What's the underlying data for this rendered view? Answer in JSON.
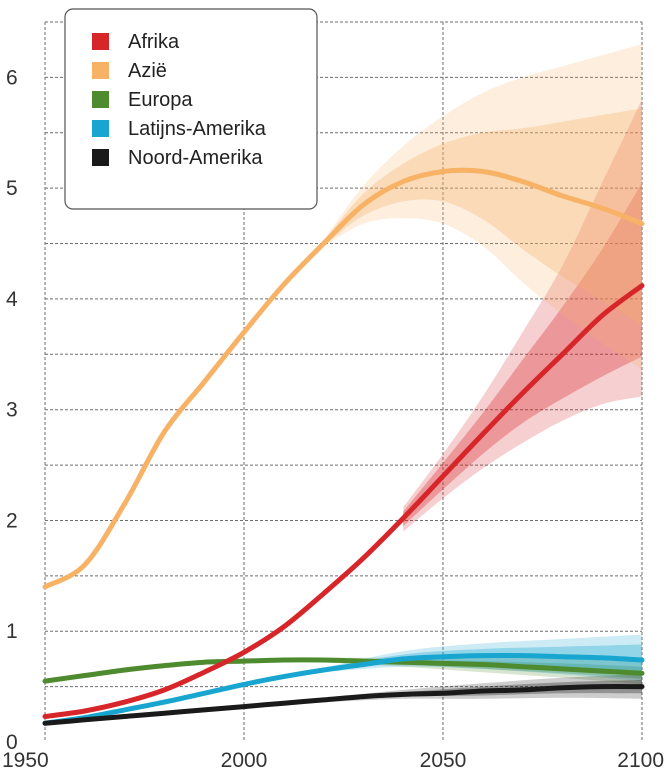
{
  "chart_data": {
    "type": "line",
    "title": "",
    "xlabel": "",
    "ylabel": "",
    "xlim": [
      1950,
      2100
    ],
    "ylim": [
      0,
      6.5
    ],
    "x_ticks": [
      "1950",
      "2000",
      "2050",
      "2100"
    ],
    "y_ticks": [
      "0",
      "1",
      "2",
      "3",
      "4",
      "5",
      "6"
    ],
    "grid": "dashed, x and y, every 0.5 on y",
    "legend_position": "top-left",
    "series": [
      {
        "name": "Afrika",
        "color": "#d7262a",
        "x": [
          1950,
          1960,
          1970,
          1980,
          1990,
          2000,
          2010,
          2020,
          2030,
          2040,
          2050,
          2060,
          2070,
          2080,
          2090,
          2100
        ],
        "values": [
          0.23,
          0.28,
          0.36,
          0.47,
          0.63,
          0.81,
          1.04,
          1.34,
          1.66,
          2.02,
          2.4,
          2.78,
          3.15,
          3.5,
          3.85,
          4.12
        ],
        "band_inner": {
          "x": [
            2040,
            2050,
            2060,
            2070,
            2080,
            2090,
            2100
          ],
          "lower": [
            1.95,
            2.28,
            2.6,
            2.88,
            3.1,
            3.3,
            3.48
          ],
          "upper": [
            2.08,
            2.52,
            2.97,
            3.45,
            3.93,
            4.45,
            5.05
          ]
        },
        "band_outer": {
          "x": [
            2040,
            2050,
            2060,
            2070,
            2080,
            2090,
            2100
          ],
          "lower": [
            1.9,
            2.2,
            2.47,
            2.7,
            2.9,
            3.05,
            3.12
          ],
          "upper": [
            2.12,
            2.6,
            3.12,
            3.7,
            4.3,
            5.05,
            5.8
          ]
        }
      },
      {
        "name": "Azië",
        "color": "#f7b266",
        "x": [
          1950,
          1960,
          1970,
          1980,
          1990,
          2000,
          2010,
          2020,
          2030,
          2040,
          2050,
          2060,
          2070,
          2080,
          2090,
          2100
        ],
        "values": [
          1.4,
          1.6,
          2.15,
          2.8,
          3.25,
          3.7,
          4.13,
          4.5,
          4.85,
          5.06,
          5.15,
          5.15,
          5.06,
          4.93,
          4.82,
          4.68
        ],
        "band_inner": {
          "x": [
            2020,
            2030,
            2040,
            2050,
            2060,
            2070,
            2080,
            2090,
            2100
          ],
          "lower": [
            4.48,
            4.75,
            4.88,
            4.88,
            4.72,
            4.45,
            4.2,
            3.98,
            3.76
          ],
          "upper": [
            4.52,
            4.95,
            5.22,
            5.4,
            5.5,
            5.54,
            5.6,
            5.66,
            5.72
          ]
        },
        "band_outer": {
          "x": [
            2020,
            2030,
            2040,
            2050,
            2060,
            2070,
            2080,
            2090,
            2100
          ],
          "lower": [
            4.47,
            4.68,
            4.73,
            4.68,
            4.48,
            4.15,
            3.86,
            3.6,
            3.36
          ],
          "upper": [
            4.53,
            5.02,
            5.38,
            5.65,
            5.86,
            6.0,
            6.1,
            6.2,
            6.3
          ]
        }
      },
      {
        "name": "Europa",
        "color": "#4e8a2e",
        "x": [
          1950,
          1960,
          1970,
          1980,
          1990,
          2000,
          2010,
          2020,
          2030,
          2040,
          2050,
          2060,
          2070,
          2080,
          2090,
          2100
        ],
        "values": [
          0.55,
          0.6,
          0.65,
          0.69,
          0.72,
          0.73,
          0.74,
          0.74,
          0.73,
          0.72,
          0.71,
          0.7,
          0.68,
          0.66,
          0.64,
          0.62
        ],
        "band_inner": {
          "x": [
            2020,
            2040,
            2060,
            2080,
            2100
          ],
          "lower": [
            0.73,
            0.7,
            0.66,
            0.62,
            0.57
          ],
          "upper": [
            0.75,
            0.74,
            0.73,
            0.71,
            0.68
          ]
        },
        "band_outer": {
          "x": [
            2020,
            2040,
            2060,
            2080,
            2100
          ],
          "lower": [
            0.72,
            0.68,
            0.63,
            0.58,
            0.52
          ],
          "upper": [
            0.76,
            0.76,
            0.76,
            0.75,
            0.73
          ]
        }
      },
      {
        "name": "Latijns-Amerika",
        "color": "#18a5cf",
        "x": [
          1950,
          1960,
          1970,
          1980,
          1990,
          2000,
          2010,
          2020,
          2030,
          2040,
          2050,
          2060,
          2070,
          2080,
          2090,
          2100
        ],
        "values": [
          0.17,
          0.22,
          0.29,
          0.36,
          0.44,
          0.52,
          0.59,
          0.65,
          0.7,
          0.75,
          0.77,
          0.78,
          0.78,
          0.77,
          0.76,
          0.74
        ],
        "band_inner": {
          "x": [
            2020,
            2040,
            2060,
            2080,
            2100
          ],
          "lower": [
            0.64,
            0.71,
            0.7,
            0.66,
            0.62
          ],
          "upper": [
            0.66,
            0.79,
            0.84,
            0.86,
            0.88
          ]
        },
        "band_outer": {
          "x": [
            2020,
            2040,
            2060,
            2080,
            2100
          ],
          "lower": [
            0.63,
            0.68,
            0.66,
            0.61,
            0.55
          ],
          "upper": [
            0.67,
            0.82,
            0.89,
            0.93,
            0.97
          ]
        }
      },
      {
        "name": "Noord-Amerika",
        "color": "#1a1a1a",
        "x": [
          1950,
          1960,
          1970,
          1980,
          1990,
          2000,
          2010,
          2020,
          2030,
          2040,
          2050,
          2060,
          2070,
          2080,
          2090,
          2100
        ],
        "values": [
          0.17,
          0.2,
          0.23,
          0.26,
          0.29,
          0.32,
          0.35,
          0.38,
          0.41,
          0.43,
          0.44,
          0.46,
          0.47,
          0.49,
          0.5,
          0.5
        ],
        "band_inner": {
          "x": [
            2020,
            2040,
            2060,
            2080,
            2100
          ],
          "lower": [
            0.37,
            0.41,
            0.42,
            0.44,
            0.44
          ],
          "upper": [
            0.39,
            0.45,
            0.5,
            0.54,
            0.56
          ]
        },
        "band_outer": {
          "x": [
            2020,
            2040,
            2060,
            2080,
            2100
          ],
          "lower": [
            0.36,
            0.39,
            0.39,
            0.4,
            0.39
          ],
          "upper": [
            0.4,
            0.47,
            0.53,
            0.58,
            0.61
          ]
        }
      }
    ]
  }
}
